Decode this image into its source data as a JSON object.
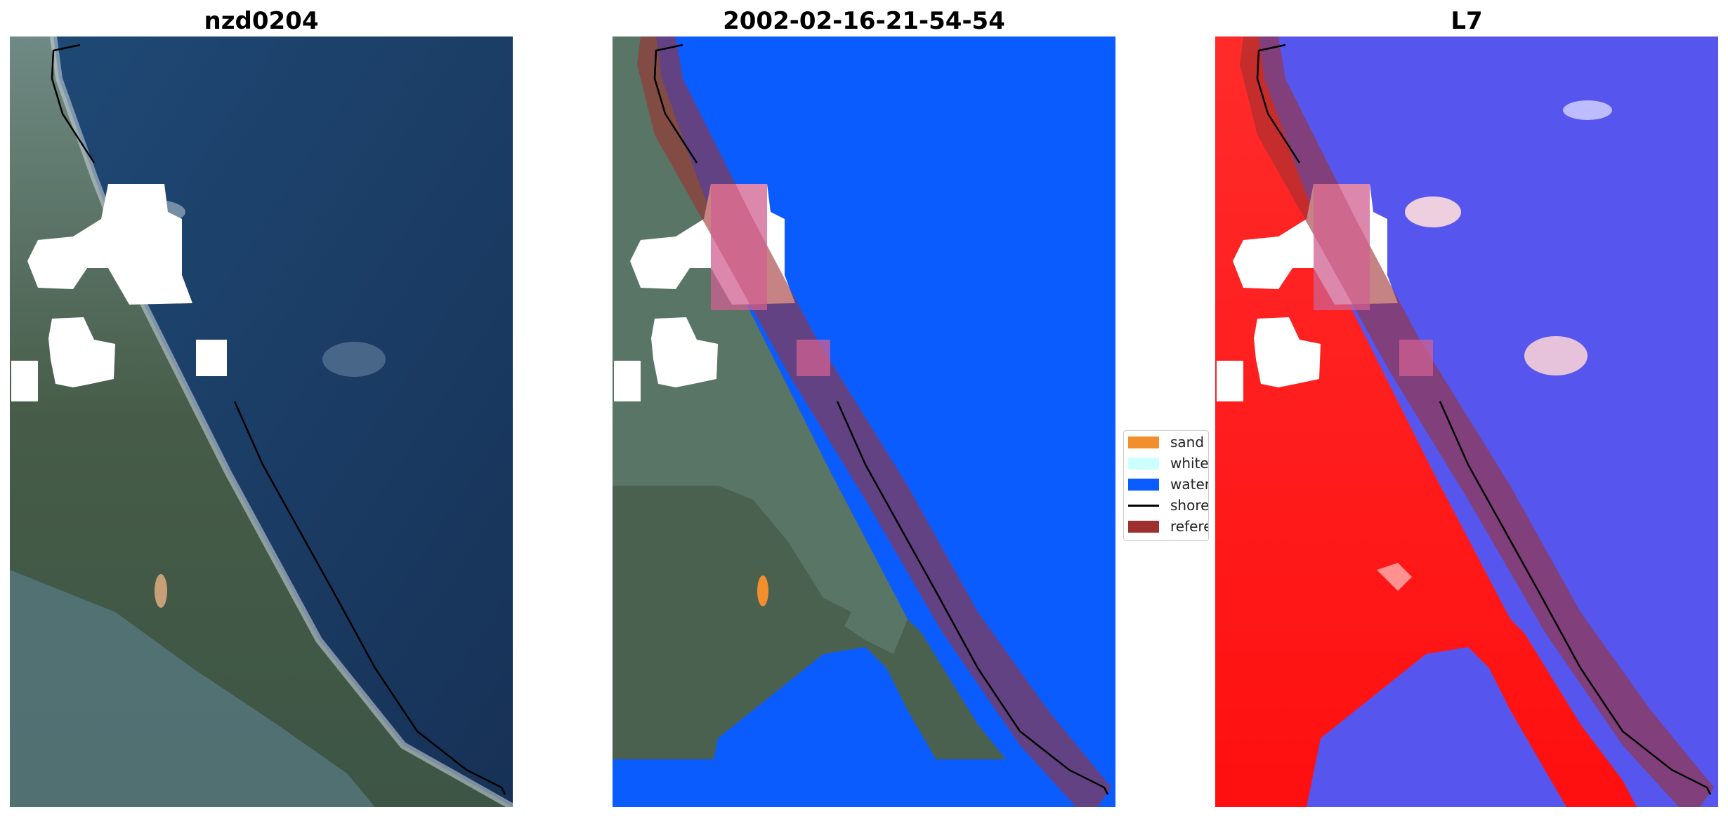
{
  "panels": [
    {
      "title": "nzd0204"
    },
    {
      "title": "2002-02-16-21-54-54"
    },
    {
      "title": "L7"
    }
  ],
  "legend": {
    "entries": [
      {
        "label": "sand",
        "color": "#f28e2b",
        "kind": "patch"
      },
      {
        "label": "whitewater",
        "color": "#ccffff",
        "kind": "patch"
      },
      {
        "label": "water",
        "color": "#0a5cff",
        "kind": "patch"
      },
      {
        "label": "shoreline",
        "color": "#000000",
        "kind": "line"
      },
      {
        "label": "reference shoreline buffer",
        "color": "#9e3030",
        "kind": "patch"
      }
    ]
  },
  "colors": {
    "ocean": "#1b3a66",
    "land": "#4a6150",
    "classified_water": "#0a5cff",
    "index_land": "#ff1a1a",
    "index_water": "#5555ee",
    "cloud_mask": "#ffffff"
  }
}
